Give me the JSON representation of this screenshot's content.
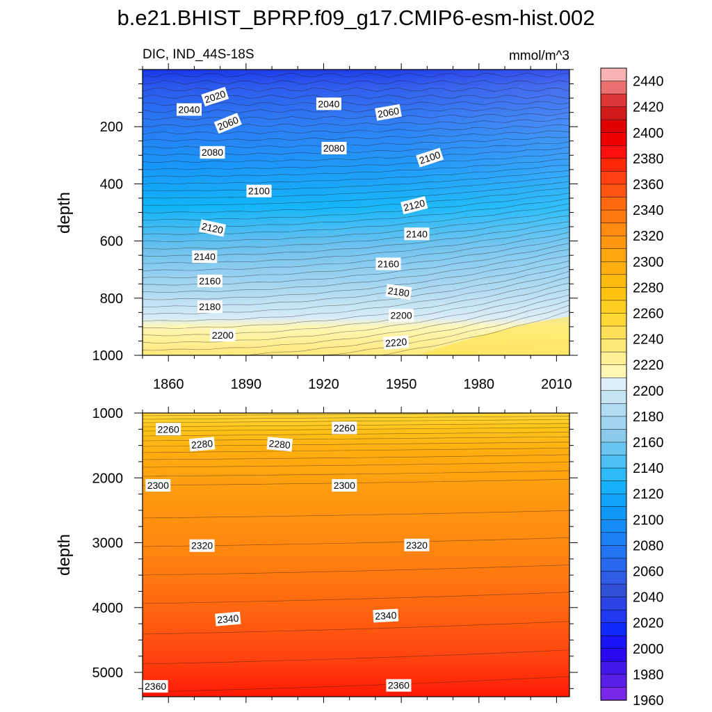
{
  "title": "b.e21.BHIST_BPRP.f09_g17.CMIP6-esm-hist.002",
  "chart_data": [
    {
      "type": "heatmap",
      "left_label": "DIC, IND_44S-18S",
      "right_label": "mmol/m^3",
      "ylabel": "depth",
      "xlim": [
        1850,
        2015
      ],
      "ylim": [
        0,
        1000
      ],
      "y_reversed": true,
      "x_ticks": [
        1860,
        1890,
        1920,
        1950,
        1980,
        2010
      ],
      "y_ticks": [
        200,
        400,
        600,
        800,
        1000
      ],
      "contour_labels": [
        {
          "text": "2020",
          "x": 1878,
          "y": 95,
          "angle": -18
        },
        {
          "text": "2040",
          "x": 1868,
          "y": 140,
          "angle": 0
        },
        {
          "text": "2060",
          "x": 1883,
          "y": 188,
          "angle": -22
        },
        {
          "text": "2080",
          "x": 1877,
          "y": 290,
          "angle": 0
        },
        {
          "text": "2100",
          "x": 1895,
          "y": 425,
          "angle": 0
        },
        {
          "text": "2120",
          "x": 1877,
          "y": 555,
          "angle": 12
        },
        {
          "text": "2140",
          "x": 1874,
          "y": 655,
          "angle": 0
        },
        {
          "text": "2160",
          "x": 1876,
          "y": 740,
          "angle": 0
        },
        {
          "text": "2180",
          "x": 1876,
          "y": 830,
          "angle": 0
        },
        {
          "text": "2200",
          "x": 1881,
          "y": 930,
          "angle": 0
        },
        {
          "text": "2040",
          "x": 1922,
          "y": 120,
          "angle": 0
        },
        {
          "text": "2080",
          "x": 1924,
          "y": 275,
          "angle": 0
        },
        {
          "text": "2060",
          "x": 1945,
          "y": 150,
          "angle": -10
        },
        {
          "text": "2100",
          "x": 1961,
          "y": 308,
          "angle": -18
        },
        {
          "text": "2120",
          "x": 1955,
          "y": 475,
          "angle": -14
        },
        {
          "text": "2140",
          "x": 1956,
          "y": 575,
          "angle": 0
        },
        {
          "text": "2160",
          "x": 1945,
          "y": 680,
          "angle": 0
        },
        {
          "text": "2180",
          "x": 1949,
          "y": 778,
          "angle": 8
        },
        {
          "text": "2200",
          "x": 1950,
          "y": 860,
          "angle": 0
        },
        {
          "text": "2220",
          "x": 1948,
          "y": 955,
          "angle": -5
        }
      ]
    },
    {
      "type": "heatmap",
      "ylabel": "depth",
      "xlim": [
        1850,
        2015
      ],
      "ylim": [
        1000,
        5375
      ],
      "y_reversed": true,
      "y_ticks": [
        1000,
        2000,
        3000,
        4000,
        5000
      ],
      "contour_labels": [
        {
          "text": "2260",
          "x": 1860,
          "y": 1250,
          "angle": 0
        },
        {
          "text": "2260",
          "x": 1928,
          "y": 1230,
          "angle": 0
        },
        {
          "text": "2280",
          "x": 1873,
          "y": 1480,
          "angle": -5
        },
        {
          "text": "2280",
          "x": 1903,
          "y": 1480,
          "angle": 5
        },
        {
          "text": "2300",
          "x": 1856,
          "y": 2115,
          "angle": 0
        },
        {
          "text": "2300",
          "x": 1928,
          "y": 2115,
          "angle": 0
        },
        {
          "text": "2320",
          "x": 1873,
          "y": 3045,
          "angle": 0
        },
        {
          "text": "2320",
          "x": 1956,
          "y": 3035,
          "angle": 0
        },
        {
          "text": "2340",
          "x": 1883,
          "y": 4175,
          "angle": -5
        },
        {
          "text": "2340",
          "x": 1944,
          "y": 4125,
          "angle": -3
        },
        {
          "text": "2360",
          "x": 1855,
          "y": 5215,
          "angle": 0
        },
        {
          "text": "2360",
          "x": 1949,
          "y": 5200,
          "angle": 0
        }
      ]
    }
  ],
  "colorbar": {
    "levels": [
      1960,
      1970,
      1980,
      1990,
      2000,
      2010,
      2020,
      2030,
      2040,
      2050,
      2060,
      2070,
      2080,
      2090,
      2100,
      2110,
      2120,
      2130,
      2140,
      2150,
      2160,
      2170,
      2180,
      2190,
      2200,
      2210,
      2220,
      2230,
      2240,
      2250,
      2260,
      2270,
      2280,
      2290,
      2300,
      2310,
      2320,
      2330,
      2340,
      2350,
      2360,
      2370,
      2380,
      2390,
      2400,
      2410,
      2420,
      2430,
      2440,
      2450
    ],
    "tick_labels": [
      1960,
      1980,
      2000,
      2020,
      2040,
      2060,
      2080,
      2100,
      2120,
      2140,
      2160,
      2180,
      2200,
      2220,
      2240,
      2260,
      2280,
      2300,
      2320,
      2340,
      2360,
      2380,
      2400,
      2420,
      2440
    ],
    "colors_high_to_low": [
      "#f8b4b4",
      "#ec7070",
      "#dc3636",
      "#d11a1a",
      "#e00000",
      "#f00000",
      "#ff1010",
      "#ff2a08",
      "#ff4010",
      "#ff5510",
      "#ff6a10",
      "#ff7a10",
      "#ff8c10",
      "#ff9810",
      "#ffa510",
      "#ffb010",
      "#ffbb10",
      "#ffc410",
      "#ffce20",
      "#ffd838",
      "#ffe058",
      "#ffe878",
      "#fff098",
      "#fff6b4",
      "#ddeef8",
      "#c6e4f4",
      "#b2dcf2",
      "#a0d4ef",
      "#8ccbec",
      "#6ac4f0",
      "#4cc0f4",
      "#2ebaf6",
      "#18b0fa",
      "#10a4fa",
      "#1098f8",
      "#168cf6",
      "#1c80f4",
      "#2274f0",
      "#2868ec",
      "#2e5ce4",
      "#3050d8",
      "#2c44e4",
      "#2038f0",
      "#1028f8",
      "#1a14f8",
      "#2a08f0",
      "#4018e8",
      "#5a20e8",
      "#7828e8"
    ]
  }
}
